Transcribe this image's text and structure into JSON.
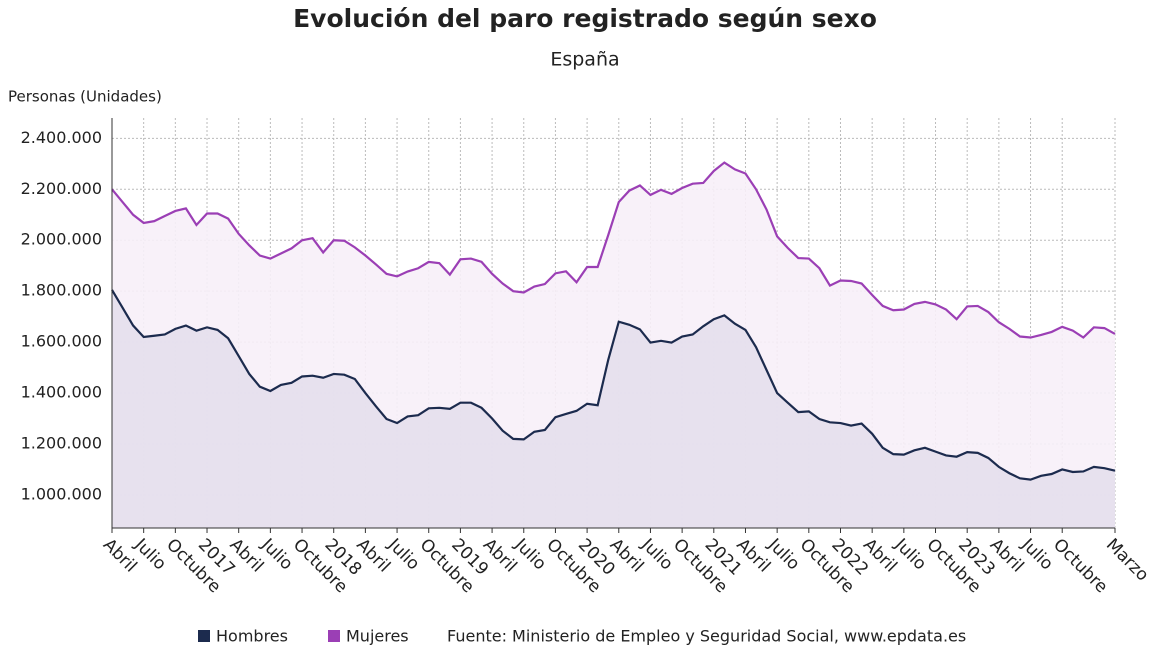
{
  "chart_data": {
    "type": "line",
    "title": "Evolución del paro registrado según sexo",
    "subtitle": "España",
    "y_label": "Personas (Unidades)",
    "source": "Fuente: Ministerio de Empleo y Seguridad Social, www.epdata.es",
    "categories": [
      "Abril",
      null,
      null,
      "Julio",
      null,
      null,
      "Octubre",
      null,
      null,
      "2017",
      null,
      null,
      "Abril",
      null,
      null,
      "Julio",
      null,
      null,
      "Octubre",
      null,
      null,
      "2018",
      null,
      null,
      "Abril",
      null,
      null,
      "Julio",
      null,
      null,
      "Octubre",
      null,
      null,
      "2019",
      null,
      null,
      "Abril",
      null,
      null,
      "Julio",
      null,
      null,
      "Octubre",
      null,
      null,
      "2020",
      null,
      null,
      "Abril",
      null,
      null,
      "Julio",
      null,
      null,
      "Octubre",
      null,
      null,
      "2021",
      null,
      null,
      "Abril",
      null,
      null,
      "Julio",
      null,
      null,
      "Octubre",
      null,
      null,
      "2022",
      null,
      null,
      "Abril",
      null,
      null,
      "Julio",
      null,
      null,
      "Octubre",
      null,
      null,
      "2023",
      null,
      null,
      "Abril",
      null,
      null,
      "Julio",
      null,
      null,
      "Octubre",
      null,
      null,
      null,
      null,
      "Marzo"
    ],
    "series": [
      {
        "name": "Hombres",
        "color": "#1c2b4e",
        "fill": "#e4dfec",
        "values": [
          1805000,
          1735000,
          1665000,
          1620000,
          1625000,
          1630000,
          1652000,
          1665000,
          1645000,
          1658000,
          1648000,
          1615000,
          1545000,
          1475000,
          1425000,
          1408000,
          1432000,
          1440000,
          1465000,
          1468000,
          1460000,
          1475000,
          1472000,
          1455000,
          1400000,
          1348000,
          1298000,
          1282000,
          1308000,
          1313000,
          1340000,
          1342000,
          1338000,
          1362000,
          1362000,
          1342000,
          1300000,
          1252000,
          1220000,
          1218000,
          1248000,
          1255000,
          1305000,
          1318000,
          1330000,
          1358000,
          1352000,
          1530000,
          1680000,
          1668000,
          1650000,
          1598000,
          1605000,
          1598000,
          1622000,
          1630000,
          1662000,
          1690000,
          1705000,
          1672000,
          1648000,
          1580000,
          1490000,
          1400000,
          1362000,
          1325000,
          1328000,
          1298000,
          1285000,
          1282000,
          1272000,
          1280000,
          1240000,
          1185000,
          1160000,
          1158000,
          1175000,
          1185000,
          1170000,
          1155000,
          1150000,
          1168000,
          1165000,
          1145000,
          1110000,
          1085000,
          1065000,
          1060000,
          1075000,
          1082000,
          1100000,
          1090000,
          1092000,
          1110000,
          1105000,
          1095000
        ]
      },
      {
        "name": "Mujeres",
        "color": "#9b3fb5",
        "fill": "#f7eff8",
        "values": [
          2200000,
          2150000,
          2100000,
          2068000,
          2075000,
          2095000,
          2115000,
          2125000,
          2060000,
          2105000,
          2105000,
          2085000,
          2025000,
          1980000,
          1940000,
          1928000,
          1948000,
          1968000,
          2000000,
          2008000,
          1952000,
          2000000,
          1998000,
          1972000,
          1940000,
          1905000,
          1868000,
          1858000,
          1877000,
          1890000,
          1915000,
          1910000,
          1865000,
          1925000,
          1928000,
          1915000,
          1868000,
          1830000,
          1800000,
          1795000,
          1818000,
          1828000,
          1870000,
          1878000,
          1835000,
          1895000,
          1895000,
          2020000,
          2150000,
          2195000,
          2215000,
          2178000,
          2198000,
          2182000,
          2205000,
          2222000,
          2225000,
          2272000,
          2305000,
          2278000,
          2262000,
          2200000,
          2120000,
          2015000,
          1970000,
          1930000,
          1928000,
          1890000,
          1822000,
          1842000,
          1840000,
          1830000,
          1785000,
          1742000,
          1725000,
          1728000,
          1750000,
          1758000,
          1748000,
          1728000,
          1690000,
          1740000,
          1742000,
          1718000,
          1678000,
          1652000,
          1622000,
          1618000,
          1628000,
          1640000,
          1660000,
          1645000,
          1618000,
          1658000,
          1655000,
          1632000
        ]
      }
    ],
    "ylim": [
      870000,
      2480000
    ],
    "yticks": [
      {
        "value": 1000000,
        "label": "1.000.000"
      },
      {
        "value": 1200000,
        "label": "1.200.000"
      },
      {
        "value": 1400000,
        "label": "1.400.000"
      },
      {
        "value": 1600000,
        "label": "1.600.000"
      },
      {
        "value": 1800000,
        "label": "1.800.000"
      },
      {
        "value": 2000000,
        "label": "2.000.000"
      },
      {
        "value": 2200000,
        "label": "2.200.000"
      },
      {
        "value": 2400000,
        "label": "2.400.000"
      }
    ],
    "grid": true
  }
}
